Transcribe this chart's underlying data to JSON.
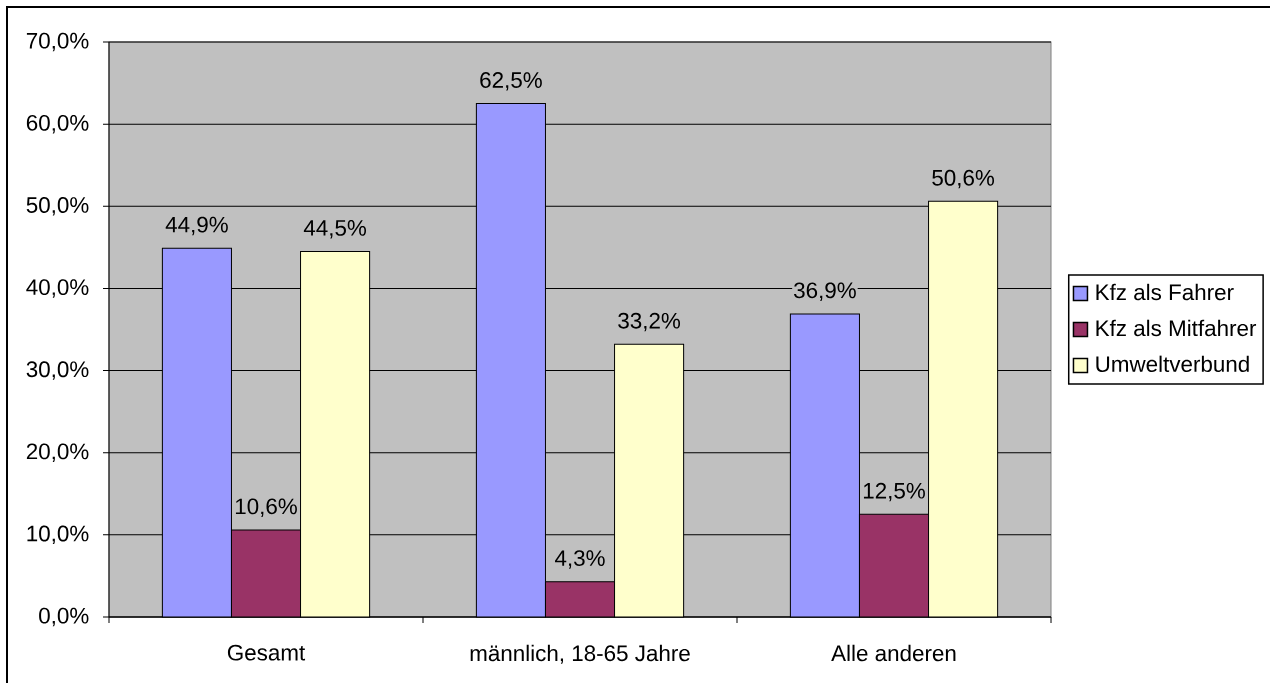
{
  "chart_data": {
    "type": "bar",
    "categories": [
      "Gesamt",
      "männlich, 18-65 Jahre",
      "Alle anderen"
    ],
    "series": [
      {
        "name": "Kfz als Fahrer",
        "color": "#9999ff",
        "values": [
          44.9,
          62.5,
          36.9
        ],
        "value_labels": [
          "44,9%",
          "62,5%",
          "36,9%"
        ]
      },
      {
        "name": "Kfz als Mitfahrer",
        "color": "#993366",
        "values": [
          10.6,
          4.3,
          12.5
        ],
        "value_labels": [
          "10,6%",
          "4,3%",
          "12,5%"
        ]
      },
      {
        "name": "Umweltverbund",
        "color": "#ffffcc",
        "values": [
          44.5,
          33.2,
          50.6
        ],
        "value_labels": [
          "44,5%",
          "33,2%",
          "50,6%"
        ]
      }
    ],
    "ylim": [
      0,
      70
    ],
    "yticks": [
      {
        "value": 0,
        "label": "0,0%"
      },
      {
        "value": 10,
        "label": "10,0%"
      },
      {
        "value": 20,
        "label": "20,0%"
      },
      {
        "value": 30,
        "label": "30,0%"
      },
      {
        "value": 40,
        "label": "40,0%"
      },
      {
        "value": 50,
        "label": "50,0%"
      },
      {
        "value": 60,
        "label": "60,0%"
      },
      {
        "value": 70,
        "label": "70,0%"
      }
    ],
    "grid": "y",
    "legend": "right"
  }
}
